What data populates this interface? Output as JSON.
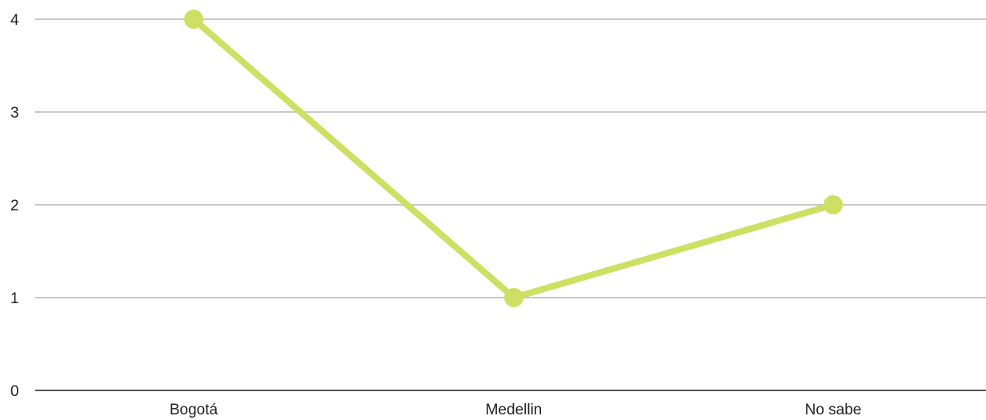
{
  "chart_data": {
    "type": "line",
    "title": "",
    "xlabel": "",
    "ylabel": "",
    "categories": [
      "Bogotá",
      "Medellin",
      "No sabe"
    ],
    "series": [
      {
        "values": [
          4,
          1,
          2
        ],
        "color": "#cde063"
      }
    ],
    "ylim": [
      0,
      4
    ],
    "yticks": [
      0,
      1,
      2,
      3,
      4
    ],
    "grid": true,
    "legend": "none",
    "colors": {
      "grid": "#c6c6c6",
      "axis": "#555555",
      "text": "#222222"
    }
  }
}
